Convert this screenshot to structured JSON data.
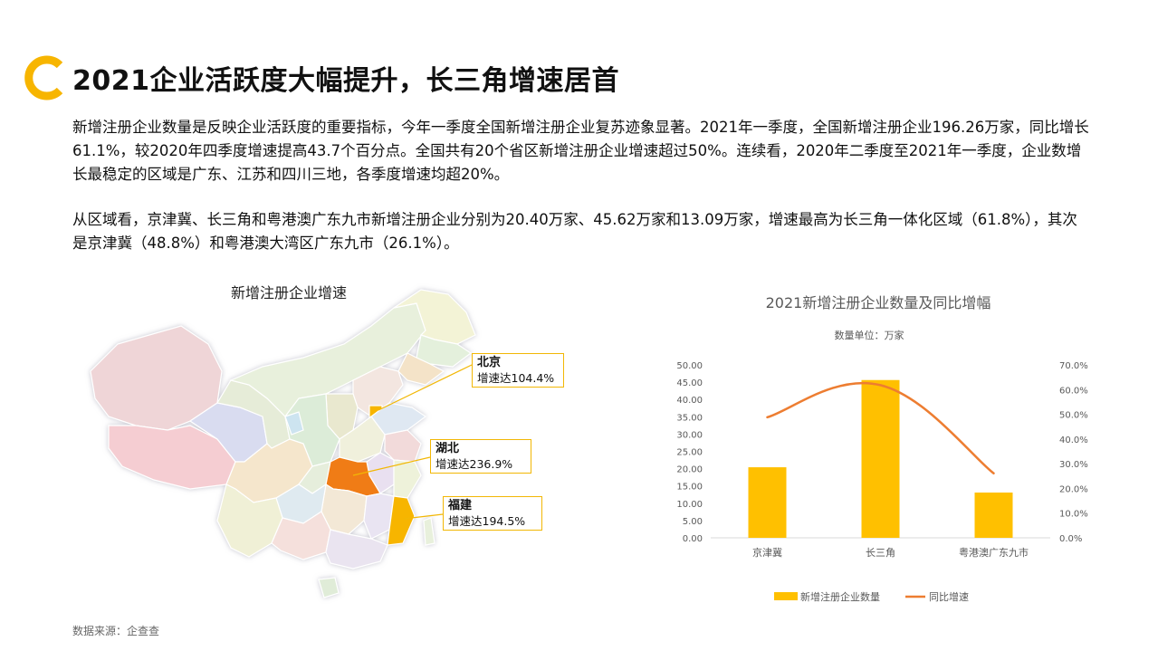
{
  "header": {
    "title": "2021企业活跃度大幅提升，长三角增速居首"
  },
  "paragraphs": [
    "新增注册企业数量是反映企业活跃度的重要指标，今年一季度全国新增注册企业复苏迹象显著。2021年一季度，全国新增注册企业196.26万家，同比增长61.1%，较2020年四季度增速提高43.7个百分点。全国共有20个省区新增注册企业增速超过50%。连续看，2020年二季度至2021年一季度，企业数增长最稳定的区域是广东、江苏和四川三地，各季度增速均超20%。",
    "从区域看，京津冀、长三角和粤港澳广东九市新增注册企业分别为20.40万家、45.62万家和13.09万家，增速最高为长三角一体化区域（61.8%），其次是京津冀（48.8%）和粤港澳大湾区广东九市（26.1%）。"
  ],
  "map": {
    "title": "新增注册企业增速",
    "callouts": [
      {
        "name": "北京",
        "text": "增速达104.4%"
      },
      {
        "name": "湖北",
        "text": "增速达236.9%"
      },
      {
        "name": "福建",
        "text": "增速达194.5%"
      }
    ],
    "colors": {
      "highlight_light": "#f7b500",
      "highlight_dark": "#f07b12",
      "callout_border": "#f2b705"
    }
  },
  "source": "数据来源：企查查",
  "colors": {
    "accent": "#f7b500",
    "line": "#ed7d31",
    "logo": "#f7b500"
  },
  "chart_data": {
    "type": "bar",
    "title": "2021新增注册企业数量及同比增幅",
    "subtitle": "数量单位：万家",
    "categories": [
      "京津冀",
      "长三角",
      "粤港澳广东九市"
    ],
    "series": [
      {
        "name": "新增注册企业数量",
        "type": "bar",
        "axis": "left",
        "values": [
          20.4,
          45.62,
          13.09
        ],
        "color": "#ffc000"
      },
      {
        "name": "同比增速",
        "type": "line",
        "axis": "right",
        "values": [
          48.8,
          61.8,
          26.1
        ],
        "color": "#ed7d31"
      }
    ],
    "ylim": [
      0,
      50
    ],
    "yticks": [
      "0.00",
      "5.00",
      "10.00",
      "15.00",
      "20.00",
      "25.00",
      "30.00",
      "35.00",
      "40.00",
      "45.00",
      "50.00"
    ],
    "y2lim": [
      0,
      70
    ],
    "y2ticks": [
      "0.0%",
      "10.0%",
      "20.0%",
      "30.0%",
      "40.0%",
      "50.0%",
      "60.0%",
      "70.0%"
    ],
    "legend": "bottom",
    "grid": false
  }
}
